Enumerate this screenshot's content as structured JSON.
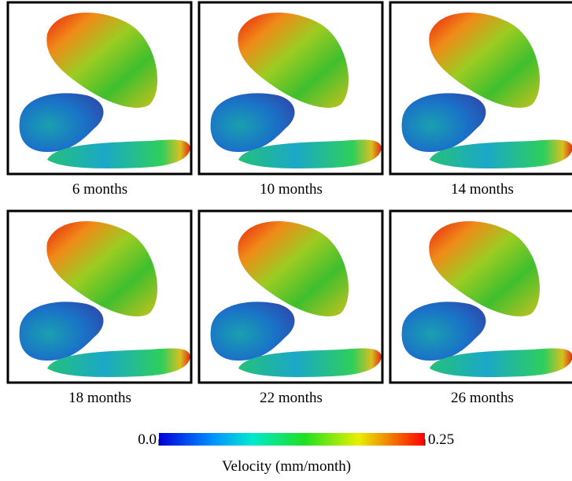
{
  "panels": [
    {
      "label": "6 months"
    },
    {
      "label": "10 months"
    },
    {
      "label": "14 months"
    },
    {
      "label": "18 months"
    },
    {
      "label": "22 months"
    },
    {
      "label": "26 months"
    }
  ],
  "colorbar": {
    "title": "Velocity (mm/month)",
    "lim": [
      0,
      0.25
    ],
    "ticks": [
      {
        "value": 0,
        "label": "0.0"
      },
      0.25
    ]
  }
}
